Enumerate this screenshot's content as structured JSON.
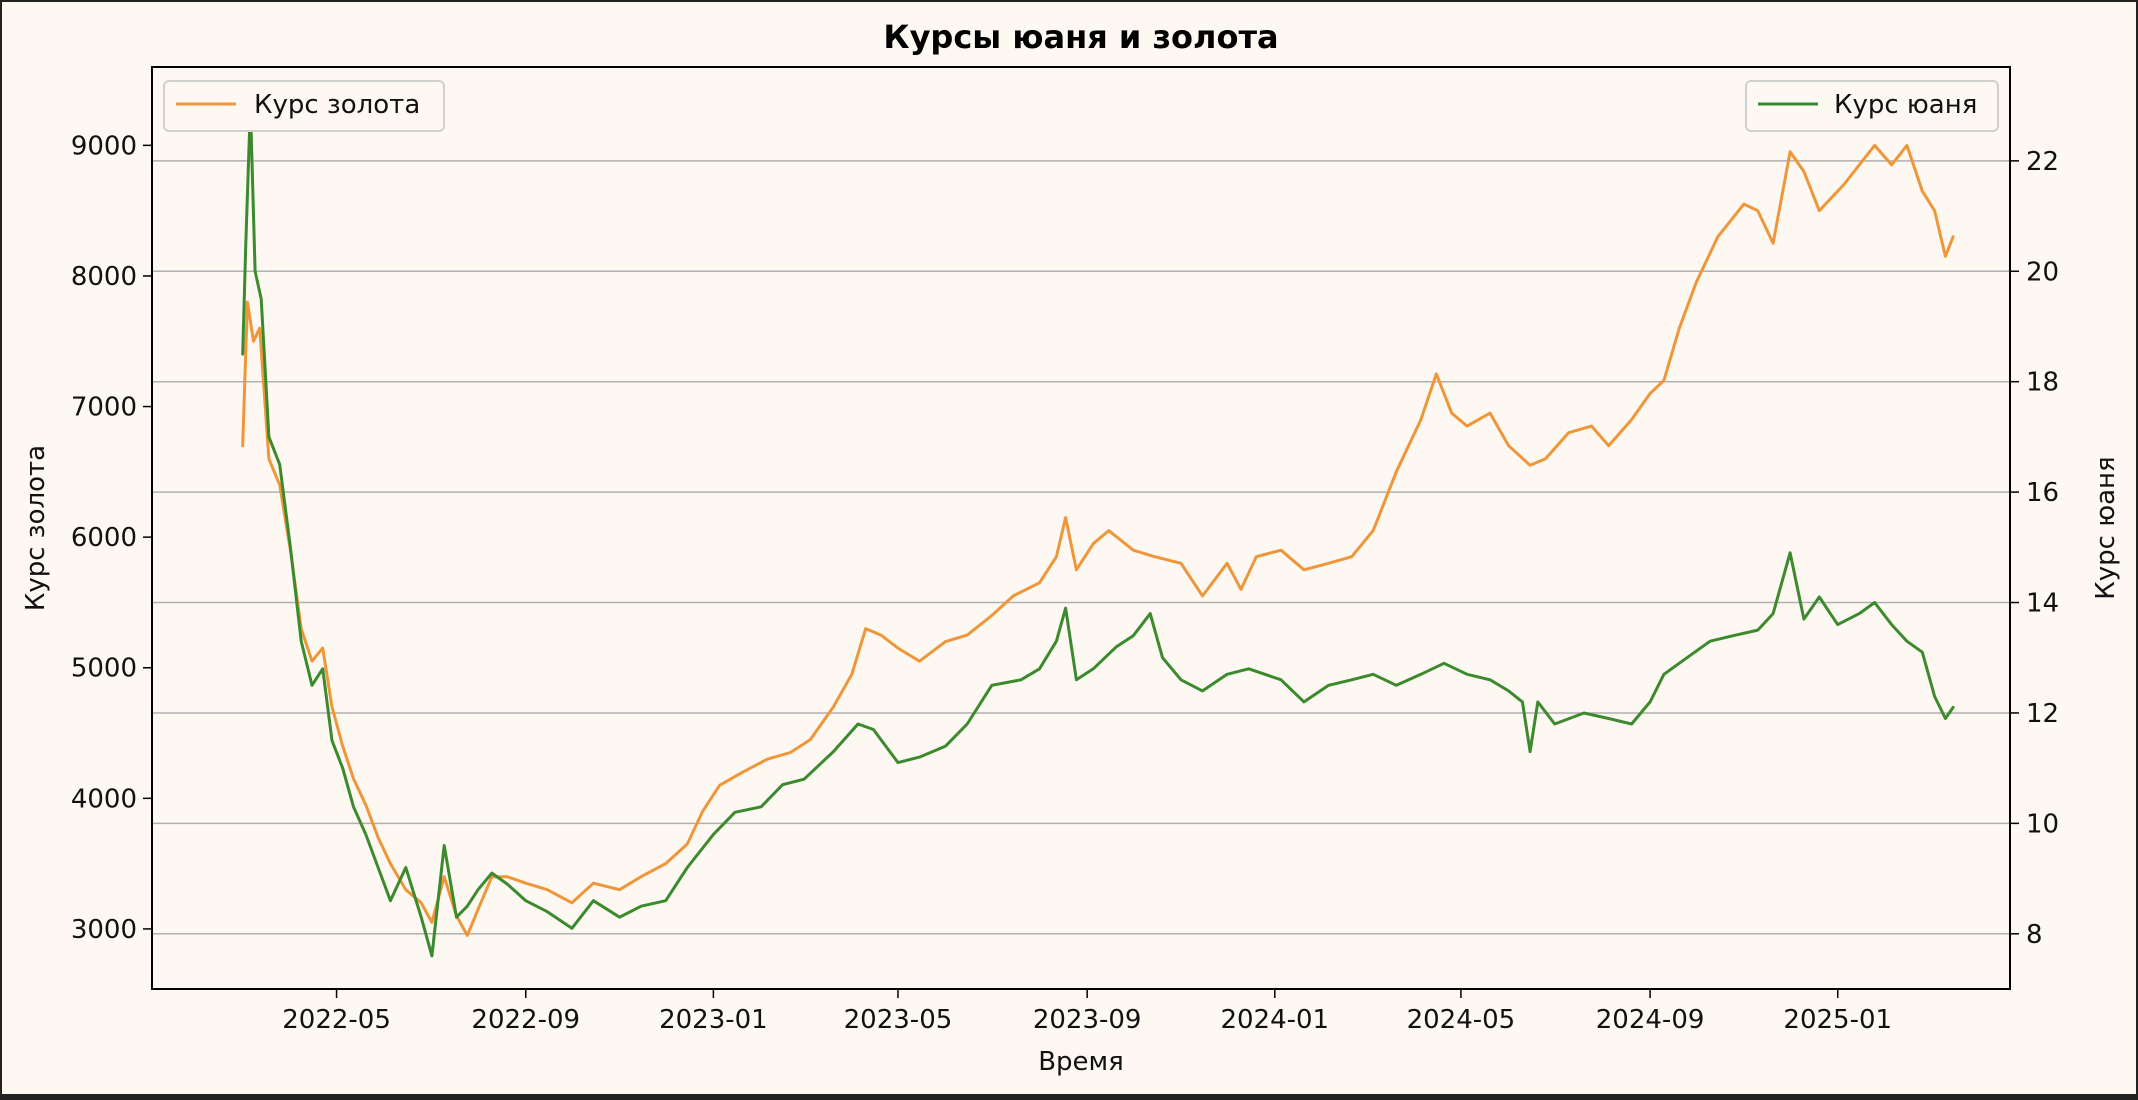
{
  "chart_data": {
    "type": "line",
    "title": "Курсы юаня и золота",
    "xlabel": "Время",
    "ylabel_left": "Курс золота",
    "ylabel_right": "Курс юаня",
    "xlim": [
      "2022-01-01",
      "2025-04-23"
    ],
    "ylim_left": [
      2540,
      9600
    ],
    "ylim_right": [
      7.0,
      23.7
    ],
    "x_ticks": [
      "2022-05",
      "2022-09",
      "2023-01",
      "2023-05",
      "2023-09",
      "2024-01",
      "2024-05",
      "2024-09",
      "2025-01"
    ],
    "y_ticks_left": [
      3000,
      4000,
      5000,
      6000,
      7000,
      8000,
      9000
    ],
    "y_ticks_right": [
      8,
      10,
      12,
      14,
      16,
      18,
      20,
      22
    ],
    "grid": "horizontal lines at right-axis ticks",
    "colors": {
      "gold": "#f0963a",
      "yuan": "#3c8a2e",
      "background": "#fdf8f1",
      "grid": "#b0b0b0"
    },
    "series": [
      {
        "name": "Курс золота",
        "axis": "left",
        "color": "#f0963a",
        "legend": "top-left",
        "points": [
          [
            "2022-03-01",
            6700
          ],
          [
            "2022-03-04",
            7800
          ],
          [
            "2022-03-08",
            7500
          ],
          [
            "2022-03-12",
            7600
          ],
          [
            "2022-03-18",
            6600
          ],
          [
            "2022-03-25",
            6400
          ],
          [
            "2022-04-01",
            5900
          ],
          [
            "2022-04-08",
            5300
          ],
          [
            "2022-04-15",
            5050
          ],
          [
            "2022-04-22",
            5150
          ],
          [
            "2022-04-28",
            4700
          ],
          [
            "2022-05-05",
            4400
          ],
          [
            "2022-05-12",
            4150
          ],
          [
            "2022-05-20",
            3950
          ],
          [
            "2022-05-28",
            3700
          ],
          [
            "2022-06-05",
            3500
          ],
          [
            "2022-06-15",
            3300
          ],
          [
            "2022-06-25",
            3200
          ],
          [
            "2022-07-02",
            3050
          ],
          [
            "2022-07-10",
            3400
          ],
          [
            "2022-07-18",
            3100
          ],
          [
            "2022-07-25",
            2950
          ],
          [
            "2022-08-01",
            3150
          ],
          [
            "2022-08-10",
            3400
          ],
          [
            "2022-08-20",
            3400
          ],
          [
            "2022-09-01",
            3350
          ],
          [
            "2022-09-15",
            3300
          ],
          [
            "2022-10-01",
            3200
          ],
          [
            "2022-10-15",
            3350
          ],
          [
            "2022-11-01",
            3300
          ],
          [
            "2022-11-15",
            3400
          ],
          [
            "2022-12-01",
            3500
          ],
          [
            "2022-12-15",
            3650
          ],
          [
            "2022-12-25",
            3900
          ],
          [
            "2023-01-05",
            4100
          ],
          [
            "2023-01-20",
            4200
          ],
          [
            "2023-02-05",
            4300
          ],
          [
            "2023-02-20",
            4350
          ],
          [
            "2023-03-05",
            4450
          ],
          [
            "2023-03-20",
            4700
          ],
          [
            "2023-04-01",
            4950
          ],
          [
            "2023-04-10",
            5300
          ],
          [
            "2023-04-20",
            5250
          ],
          [
            "2023-05-01",
            5150
          ],
          [
            "2023-05-15",
            5050
          ],
          [
            "2023-06-01",
            5200
          ],
          [
            "2023-06-15",
            5250
          ],
          [
            "2023-07-01",
            5400
          ],
          [
            "2023-07-15",
            5550
          ],
          [
            "2023-08-01",
            5650
          ],
          [
            "2023-08-12",
            5850
          ],
          [
            "2023-08-18",
            6150
          ],
          [
            "2023-08-25",
            5750
          ],
          [
            "2023-09-05",
            5950
          ],
          [
            "2023-09-15",
            6050
          ],
          [
            "2023-10-01",
            5900
          ],
          [
            "2023-10-15",
            5850
          ],
          [
            "2023-11-01",
            5800
          ],
          [
            "2023-11-15",
            5550
          ],
          [
            "2023-12-01",
            5800
          ],
          [
            "2023-12-10",
            5600
          ],
          [
            "2023-12-20",
            5850
          ],
          [
            "2024-01-05",
            5900
          ],
          [
            "2024-01-20",
            5750
          ],
          [
            "2024-02-05",
            5800
          ],
          [
            "2024-02-20",
            5850
          ],
          [
            "2024-03-05",
            6050
          ],
          [
            "2024-03-20",
            6500
          ],
          [
            "2024-04-05",
            6900
          ],
          [
            "2024-04-15",
            7250
          ],
          [
            "2024-04-25",
            6950
          ],
          [
            "2024-05-05",
            6850
          ],
          [
            "2024-05-20",
            6950
          ],
          [
            "2024-06-01",
            6700
          ],
          [
            "2024-06-15",
            6550
          ],
          [
            "2024-06-25",
            6600
          ],
          [
            "2024-07-10",
            6800
          ],
          [
            "2024-07-25",
            6850
          ],
          [
            "2024-08-05",
            6700
          ],
          [
            "2024-08-20",
            6900
          ],
          [
            "2024-09-01",
            7100
          ],
          [
            "2024-09-10",
            7200
          ],
          [
            "2024-09-20",
            7600
          ],
          [
            "2024-10-01",
            7950
          ],
          [
            "2024-10-15",
            8300
          ],
          [
            "2024-11-01",
            8550
          ],
          [
            "2024-11-10",
            8500
          ],
          [
            "2024-11-20",
            8250
          ],
          [
            "2024-12-01",
            8950
          ],
          [
            "2024-12-10",
            8800
          ],
          [
            "2024-12-20",
            8500
          ],
          [
            "2025-01-05",
            8700
          ],
          [
            "2025-01-15",
            8850
          ],
          [
            "2025-01-25",
            9000
          ],
          [
            "2025-02-05",
            8850
          ],
          [
            "2025-02-15",
            9000
          ],
          [
            "2025-02-25",
            8650
          ],
          [
            "2025-03-05",
            8500
          ],
          [
            "2025-03-12",
            8150
          ],
          [
            "2025-03-17",
            8300
          ]
        ]
      },
      {
        "name": "Курс юаня",
        "axis": "right",
        "color": "#3c8a2e",
        "legend": "top-right",
        "points": [
          [
            "2022-03-01",
            18.5
          ],
          [
            "2022-03-03",
            20.5
          ],
          [
            "2022-03-06",
            23.0
          ],
          [
            "2022-03-09",
            20.0
          ],
          [
            "2022-03-13",
            19.5
          ],
          [
            "2022-03-18",
            17.0
          ],
          [
            "2022-03-25",
            16.5
          ],
          [
            "2022-04-01",
            15.0
          ],
          [
            "2022-04-08",
            13.3
          ],
          [
            "2022-04-15",
            12.5
          ],
          [
            "2022-04-22",
            12.8
          ],
          [
            "2022-04-28",
            11.5
          ],
          [
            "2022-05-05",
            11.0
          ],
          [
            "2022-05-12",
            10.3
          ],
          [
            "2022-05-20",
            9.8
          ],
          [
            "2022-05-28",
            9.2
          ],
          [
            "2022-06-05",
            8.6
          ],
          [
            "2022-06-15",
            9.2
          ],
          [
            "2022-06-25",
            8.3
          ],
          [
            "2022-07-02",
            7.6
          ],
          [
            "2022-07-10",
            9.6
          ],
          [
            "2022-07-18",
            8.3
          ],
          [
            "2022-07-25",
            8.5
          ],
          [
            "2022-08-01",
            8.8
          ],
          [
            "2022-08-10",
            9.1
          ],
          [
            "2022-08-20",
            8.9
          ],
          [
            "2022-09-01",
            8.6
          ],
          [
            "2022-09-15",
            8.4
          ],
          [
            "2022-10-01",
            8.1
          ],
          [
            "2022-10-15",
            8.6
          ],
          [
            "2022-11-01",
            8.3
          ],
          [
            "2022-11-15",
            8.5
          ],
          [
            "2022-12-01",
            8.6
          ],
          [
            "2022-12-15",
            9.2
          ],
          [
            "2023-01-01",
            9.8
          ],
          [
            "2023-01-15",
            10.2
          ],
          [
            "2023-02-01",
            10.3
          ],
          [
            "2023-02-15",
            10.7
          ],
          [
            "2023-03-01",
            10.8
          ],
          [
            "2023-03-20",
            11.3
          ],
          [
            "2023-04-05",
            11.8
          ],
          [
            "2023-04-15",
            11.7
          ],
          [
            "2023-05-01",
            11.1
          ],
          [
            "2023-05-15",
            11.2
          ],
          [
            "2023-06-01",
            11.4
          ],
          [
            "2023-06-15",
            11.8
          ],
          [
            "2023-07-01",
            12.5
          ],
          [
            "2023-07-20",
            12.6
          ],
          [
            "2023-08-01",
            12.8
          ],
          [
            "2023-08-12",
            13.3
          ],
          [
            "2023-08-18",
            13.9
          ],
          [
            "2023-08-25",
            12.6
          ],
          [
            "2023-09-05",
            12.8
          ],
          [
            "2023-09-20",
            13.2
          ],
          [
            "2023-10-01",
            13.4
          ],
          [
            "2023-10-12",
            13.8
          ],
          [
            "2023-10-20",
            13.0
          ],
          [
            "2023-11-01",
            12.6
          ],
          [
            "2023-11-15",
            12.4
          ],
          [
            "2023-12-01",
            12.7
          ],
          [
            "2023-12-15",
            12.8
          ],
          [
            "2024-01-05",
            12.6
          ],
          [
            "2024-01-20",
            12.2
          ],
          [
            "2024-02-05",
            12.5
          ],
          [
            "2024-02-20",
            12.6
          ],
          [
            "2024-03-05",
            12.7
          ],
          [
            "2024-03-20",
            12.5
          ],
          [
            "2024-04-05",
            12.7
          ],
          [
            "2024-04-20",
            12.9
          ],
          [
            "2024-05-05",
            12.7
          ],
          [
            "2024-05-20",
            12.6
          ],
          [
            "2024-06-01",
            12.4
          ],
          [
            "2024-06-10",
            12.2
          ],
          [
            "2024-06-15",
            11.3
          ],
          [
            "2024-06-20",
            12.2
          ],
          [
            "2024-07-01",
            11.8
          ],
          [
            "2024-07-20",
            12.0
          ],
          [
            "2024-08-05",
            11.9
          ],
          [
            "2024-08-20",
            11.8
          ],
          [
            "2024-09-01",
            12.2
          ],
          [
            "2024-09-10",
            12.7
          ],
          [
            "2024-09-25",
            13.0
          ],
          [
            "2024-10-10",
            13.3
          ],
          [
            "2024-10-25",
            13.4
          ],
          [
            "2024-11-10",
            13.5
          ],
          [
            "2024-11-20",
            13.8
          ],
          [
            "2024-12-01",
            14.9
          ],
          [
            "2024-12-10",
            13.7
          ],
          [
            "2024-12-20",
            14.1
          ],
          [
            "2025-01-01",
            13.6
          ],
          [
            "2025-01-15",
            13.8
          ],
          [
            "2025-01-25",
            14.0
          ],
          [
            "2025-02-05",
            13.6
          ],
          [
            "2025-02-15",
            13.3
          ],
          [
            "2025-02-25",
            13.1
          ],
          [
            "2025-03-05",
            12.3
          ],
          [
            "2025-03-12",
            11.9
          ],
          [
            "2025-03-17",
            12.1
          ]
        ]
      }
    ]
  }
}
